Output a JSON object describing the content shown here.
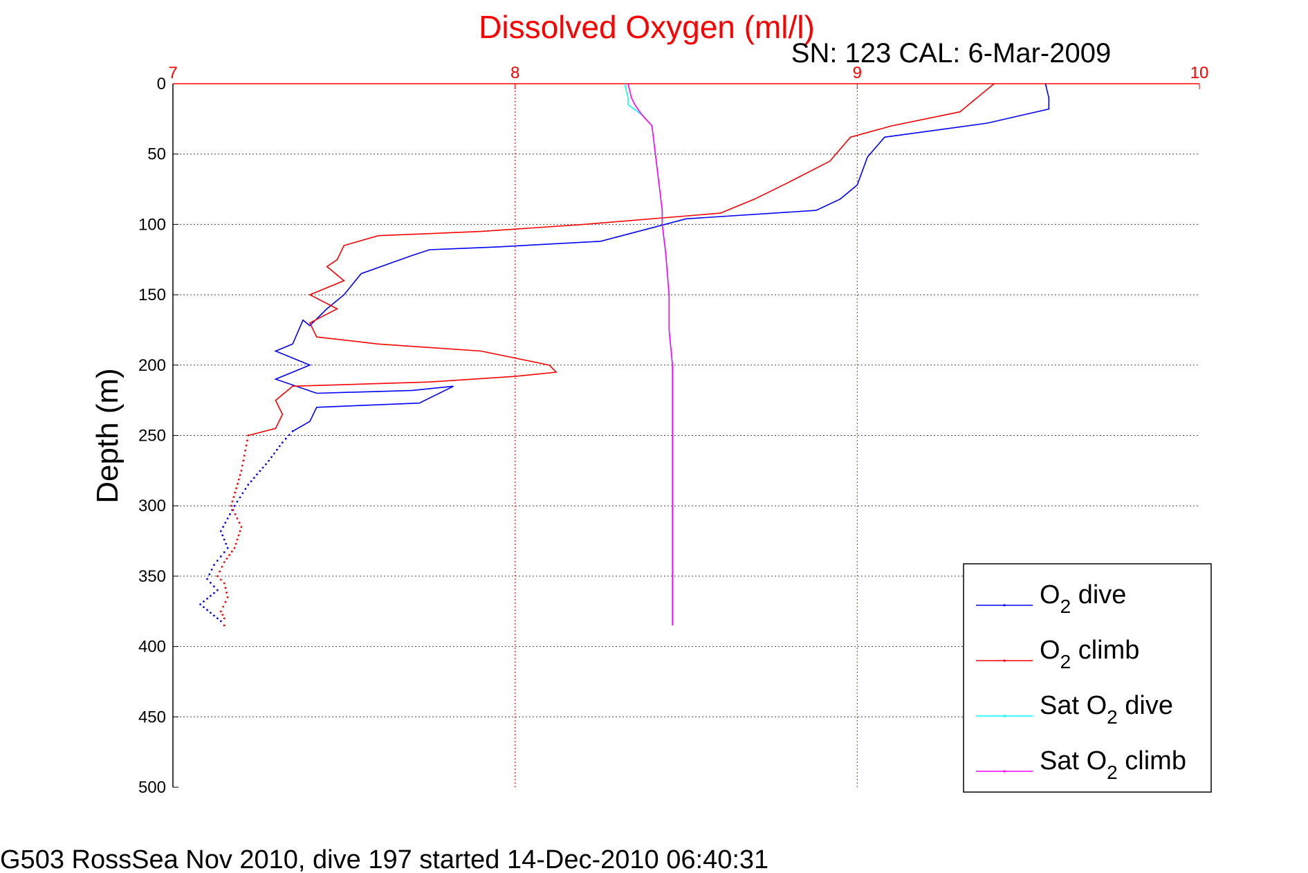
{
  "colors": {
    "title": "#ff0000",
    "top_axis": "#ff0000",
    "o2_dive": "#0000ff",
    "o2_climb": "#ff0000",
    "sat_o2_dive": "#00ffff",
    "sat_o2_climb": "#ff00ff",
    "text": "#000000"
  },
  "chart_data": {
    "type": "line",
    "title": "Dissolved Oxygen (ml/l)",
    "subtitle": "SN: 123  CAL: 6-Mar-2009",
    "ylabel": "Depth (m)",
    "xlim": [
      7,
      10
    ],
    "ylim": [
      0,
      500
    ],
    "y_reversed": true,
    "x_axis_position": "top",
    "x_ticks": [
      "7",
      "8",
      "9",
      "10"
    ],
    "y_ticks": [
      "0",
      "50",
      "100",
      "150",
      "200",
      "250",
      "300",
      "350",
      "400",
      "450",
      "500"
    ],
    "grid": true,
    "legend_position": "bottom-right",
    "legend": [
      {
        "key": "o2_dive",
        "prefix": "O",
        "sub": "2",
        "suffix": " dive"
      },
      {
        "key": "o2_climb",
        "prefix": "O",
        "sub": "2",
        "suffix": " climb"
      },
      {
        "key": "sat_o2_dive",
        "prefix": "Sat O",
        "sub": "2",
        "suffix": " dive"
      },
      {
        "key": "sat_o2_climb",
        "prefix": "Sat O",
        "sub": "2",
        "suffix": " climb"
      }
    ],
    "series": [
      {
        "key": "o2_dive",
        "x": [
          9.55,
          9.56,
          9.56,
          9.38,
          9.08,
          9.03,
          9.0,
          8.95,
          8.88,
          8.5,
          8.25,
          7.95,
          7.75,
          7.7,
          7.55,
          7.5,
          7.45,
          7.4,
          7.38,
          7.35,
          7.3,
          7.4,
          7.35,
          7.3,
          7.42,
          7.7,
          7.82,
          7.72,
          7.42,
          7.4,
          7.35,
          7.32,
          7.28,
          7.22,
          7.18,
          7.14,
          7.16,
          7.12,
          7.1,
          7.13,
          7.08,
          7.12,
          7.14,
          7.15
        ],
        "y": [
          0,
          10,
          18,
          28,
          38,
          52,
          72,
          82,
          90,
          96,
          112,
          116,
          118,
          122,
          135,
          150,
          160,
          172,
          168,
          185,
          190,
          200,
          205,
          210,
          220,
          218,
          215,
          227,
          230,
          240,
          247,
          255,
          268,
          285,
          300,
          318,
          330,
          342,
          352,
          360,
          370,
          378,
          382,
          385
        ],
        "style": "line-to-dots",
        "dot_from_y": 250
      },
      {
        "key": "o2_climb",
        "x": [
          9.4,
          9.35,
          9.3,
          9.1,
          8.98,
          8.92,
          8.8,
          8.7,
          8.6,
          8.2,
          7.9,
          7.6,
          7.5,
          7.48,
          7.45,
          7.5,
          7.4,
          7.48,
          7.4,
          7.42,
          7.6,
          7.9,
          8.1,
          8.12,
          8.0,
          7.75,
          7.35,
          7.3,
          7.32,
          7.3,
          7.22,
          7.2,
          7.17,
          7.2,
          7.18,
          7.15,
          7.13,
          7.15,
          7.16,
          7.14,
          7.15,
          7.15
        ],
        "y": [
          0,
          10,
          20,
          30,
          38,
          55,
          70,
          82,
          92,
          100,
          105,
          108,
          115,
          125,
          130,
          140,
          150,
          160,
          170,
          180,
          185,
          190,
          200,
          205,
          208,
          212,
          215,
          225,
          235,
          245,
          250,
          275,
          300,
          315,
          330,
          340,
          350,
          355,
          365,
          375,
          380,
          385
        ],
        "style": "line-to-dots",
        "dot_from_y": 250
      },
      {
        "key": "sat_o2_dive",
        "x": [
          8.32,
          8.33,
          8.33,
          8.37,
          8.4,
          8.41,
          8.42,
          8.43,
          8.43,
          8.44,
          8.45,
          8.45,
          8.46,
          8.46,
          8.46,
          8.46,
          8.46
        ],
        "y": [
          0,
          10,
          15,
          22,
          30,
          50,
          70,
          90,
          100,
          120,
          150,
          175,
          200,
          250,
          300,
          350,
          385
        ],
        "style": "line"
      },
      {
        "key": "sat_o2_climb",
        "x": [
          8.33,
          8.34,
          8.35,
          8.37,
          8.4,
          8.41,
          8.42,
          8.43,
          8.43,
          8.44,
          8.45,
          8.45,
          8.46,
          8.46,
          8.46,
          8.46,
          8.46
        ],
        "y": [
          0,
          10,
          15,
          22,
          30,
          50,
          70,
          90,
          100,
          120,
          150,
          175,
          200,
          250,
          300,
          350,
          385
        ],
        "style": "line"
      }
    ]
  },
  "footer": "G503 RossSea Nov 2010, dive 197 started 14-Dec-2010 06:40:31"
}
